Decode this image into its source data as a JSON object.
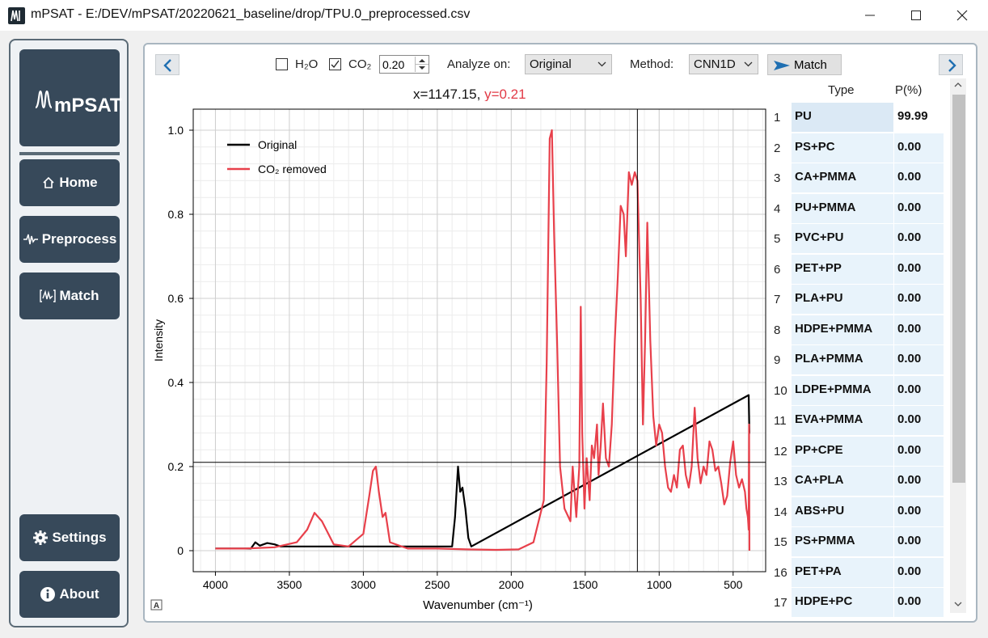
{
  "window": {
    "title": "mPSAT - E:/DEV/mPSAT/20220621_baseline/drop/TPU.0_preprocessed.csv",
    "icon": "mpsat-app-icon"
  },
  "sidebar": {
    "logo_text": "mPSAT",
    "buttons": [
      {
        "label": "Home",
        "icon": "home-icon"
      },
      {
        "label": "Preprocess",
        "icon": "waveform-icon"
      },
      {
        "label": "Match",
        "icon": "spectrum-match-icon"
      },
      {
        "label": "Settings",
        "icon": "gear-icon"
      },
      {
        "label": "About",
        "icon": "info-icon"
      }
    ]
  },
  "toolbar": {
    "h2o_label": "H₂O",
    "h2o_checked": false,
    "co2_label": "CO₂",
    "co2_checked": true,
    "co2_value": "0.20",
    "analyze_label": "Analyze on:",
    "analyze_value": "Original",
    "method_label": "Method:",
    "method_value": "CNN1D",
    "match_label": "Match"
  },
  "readout": {
    "x": "x=1147.15,",
    "y": "y=0.21"
  },
  "colors": {
    "original": "#000000",
    "co2_removed": "#e8404b",
    "sidebar_button": "#37495a",
    "accent": "#1f6fb2"
  },
  "chart_data": {
    "type": "line",
    "xlabel": "Wavenumber (cm⁻¹)",
    "ylabel": "Intensity",
    "x_reversed": true,
    "xlim": [
      4150,
      280
    ],
    "ylim": [
      -0.05,
      1.05
    ],
    "xticks": [
      "4000",
      "3500",
      "3000",
      "2500",
      "2000",
      "1500",
      "1000",
      "500"
    ],
    "yticks": [
      "0",
      "0.2",
      "0.4",
      "0.6",
      "0.8",
      "1.0"
    ],
    "legend": {
      "placement": "top-left",
      "entries": [
        "Original",
        "CO₂ removed"
      ]
    },
    "grid": true,
    "crosshair": {
      "x": 1147.15,
      "y": 0.21
    },
    "series": [
      {
        "name": "Original",
        "color": "#000000",
        "x": [
          4000,
          3760,
          3730,
          3700,
          3650,
          3600,
          3560,
          2400,
          2380,
          2360,
          2345,
          2330,
          2310,
          2290,
          2270,
          395,
          390,
          385
        ],
        "y": [
          0.005,
          0.005,
          0.02,
          0.012,
          0.018,
          0.015,
          0.01,
          0.01,
          0.08,
          0.2,
          0.14,
          0.15,
          0.1,
          0.03,
          0.01,
          0.37,
          0.28,
          0.28
        ]
      },
      {
        "name": "CO₂ removed",
        "color": "#e8404b",
        "x": [
          4000,
          3800,
          3600,
          3450,
          3380,
          3330,
          3280,
          3200,
          3100,
          3000,
          2960,
          2935,
          2915,
          2895,
          2870,
          2850,
          2820,
          2700,
          2500,
          2300,
          2100,
          1950,
          1850,
          1780,
          1760,
          1740,
          1725,
          1710,
          1690,
          1670,
          1640,
          1600,
          1585,
          1560,
          1540,
          1530,
          1520,
          1505,
          1490,
          1470,
          1455,
          1440,
          1420,
          1410,
          1395,
          1380,
          1360,
          1340,
          1320,
          1300,
          1280,
          1260,
          1240,
          1225,
          1205,
          1185,
          1165,
          1147,
          1125,
          1110,
          1095,
          1080,
          1060,
          1040,
          1020,
          1000,
          980,
          960,
          940,
          920,
          900,
          880,
          860,
          840,
          820,
          800,
          780,
          760,
          740,
          720,
          700,
          680,
          660,
          640,
          620,
          600,
          580,
          560,
          540,
          520,
          500,
          480,
          460,
          440,
          420,
          410,
          400,
          395,
          392,
          390
        ],
        "y": [
          0.005,
          0.005,
          0.008,
          0.02,
          0.05,
          0.09,
          0.07,
          0.015,
          0.01,
          0.04,
          0.13,
          0.19,
          0.2,
          0.14,
          0.08,
          0.09,
          0.02,
          0.005,
          0.005,
          0.003,
          0.002,
          0.003,
          0.02,
          0.12,
          0.45,
          0.98,
          1.0,
          0.75,
          0.5,
          0.2,
          0.1,
          0.07,
          0.2,
          0.08,
          0.2,
          0.58,
          0.28,
          0.1,
          0.22,
          0.12,
          0.25,
          0.22,
          0.3,
          0.18,
          0.25,
          0.35,
          0.22,
          0.2,
          0.3,
          0.5,
          0.65,
          0.82,
          0.8,
          0.7,
          0.9,
          0.87,
          0.9,
          0.88,
          0.6,
          0.3,
          0.5,
          0.78,
          0.5,
          0.32,
          0.25,
          0.3,
          0.28,
          0.2,
          0.15,
          0.14,
          0.18,
          0.15,
          0.24,
          0.25,
          0.18,
          0.15,
          0.2,
          0.34,
          0.22,
          0.16,
          0.2,
          0.18,
          0.26,
          0.24,
          0.19,
          0.2,
          0.16,
          0.11,
          0.13,
          0.21,
          0.26,
          0.18,
          0.15,
          0.17,
          0.14,
          0.1,
          0.08,
          0.05,
          0.3,
          0.0
        ]
      }
    ]
  },
  "results_table": {
    "headers": [
      "Type",
      "P(%)"
    ],
    "rows": [
      {
        "n": "1",
        "type": "PU",
        "p": "99.99"
      },
      {
        "n": "2",
        "type": "PS+PC",
        "p": "0.00"
      },
      {
        "n": "3",
        "type": "CA+PMMA",
        "p": "0.00"
      },
      {
        "n": "4",
        "type": "PU+PMMA",
        "p": "0.00"
      },
      {
        "n": "5",
        "type": "PVC+PU",
        "p": "0.00"
      },
      {
        "n": "6",
        "type": "PET+PP",
        "p": "0.00"
      },
      {
        "n": "7",
        "type": "PLA+PU",
        "p": "0.00"
      },
      {
        "n": "8",
        "type": "HDPE+PMMA",
        "p": "0.00"
      },
      {
        "n": "9",
        "type": "PLA+PMMA",
        "p": "0.00"
      },
      {
        "n": "10",
        "type": "LDPE+PMMA",
        "p": "0.00"
      },
      {
        "n": "11",
        "type": "EVA+PMMA",
        "p": "0.00"
      },
      {
        "n": "12",
        "type": "PP+CPE",
        "p": "0.00"
      },
      {
        "n": "13",
        "type": "CA+PLA",
        "p": "0.00"
      },
      {
        "n": "14",
        "type": "ABS+PU",
        "p": "0.00"
      },
      {
        "n": "15",
        "type": "PS+PMMA",
        "p": "0.00"
      },
      {
        "n": "16",
        "type": "PET+PA",
        "p": "0.00"
      },
      {
        "n": "17",
        "type": "HDPE+PC",
        "p": "0.00"
      }
    ]
  }
}
